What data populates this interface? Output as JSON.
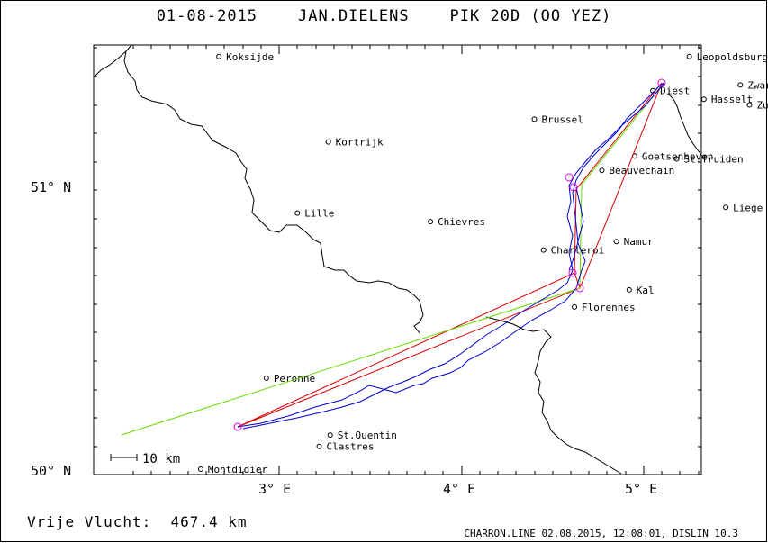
{
  "header": {
    "date": "01-08-2015",
    "pilot": "JAN.DIELENS",
    "glider": "PIK 20D (OO YEZ)"
  },
  "map": {
    "lat_labels": [
      "51° N",
      "50° N"
    ],
    "lon_labels": [
      "3° E",
      "4° E",
      "5° E"
    ],
    "scale_label": "10 km",
    "towns": [
      {
        "name": "Koksijde",
        "lon": 2.67,
        "lat": 51.45
      },
      {
        "name": "Leopoldsburg",
        "lon": 5.25,
        "lat": 51.45
      },
      {
        "name": "Diest",
        "lon": 5.05,
        "lat": 51.33
      },
      {
        "name": "Zwartberg",
        "lon": 5.53,
        "lat": 51.35
      },
      {
        "name": "Hasselt",
        "lon": 5.33,
        "lat": 51.3
      },
      {
        "name": "Zutendaal",
        "lon": 5.58,
        "lat": 51.28
      },
      {
        "name": "Brussel",
        "lon": 4.4,
        "lat": 51.23
      },
      {
        "name": "Kortrijk",
        "lon": 3.27,
        "lat": 51.15
      },
      {
        "name": "Goetsenhoven",
        "lon": 4.95,
        "lat": 51.1
      },
      {
        "name": "St.Truiden",
        "lon": 5.18,
        "lat": 51.09
      },
      {
        "name": "Beauvechain",
        "lon": 4.77,
        "lat": 51.05
      },
      {
        "name": "Liege",
        "lon": 5.45,
        "lat": 50.92
      },
      {
        "name": "Lille",
        "lon": 3.1,
        "lat": 50.9
      },
      {
        "name": "Chievres",
        "lon": 3.83,
        "lat": 50.87
      },
      {
        "name": "Namur",
        "lon": 4.85,
        "lat": 50.8
      },
      {
        "name": "Charleroi",
        "lon": 4.45,
        "lat": 50.77
      },
      {
        "name": "Kal",
        "lon": 4.92,
        "lat": 50.63
      },
      {
        "name": "Florennes",
        "lon": 4.62,
        "lat": 50.57
      },
      {
        "name": "Peronne",
        "lon": 2.93,
        "lat": 50.32
      },
      {
        "name": "St.Quentin",
        "lon": 3.28,
        "lat": 50.12
      },
      {
        "name": "Clastres",
        "lon": 3.22,
        "lat": 50.08
      },
      {
        "name": "Montdidier",
        "lon": 2.57,
        "lat": 50.0
      }
    ]
  },
  "footer": {
    "distance_label": "Vrije Vlucht:",
    "distance_value": "467.4 km",
    "credits": "CHARRON.LINE 02.08.2015, 12:08:01, DISLIN 10.3"
  }
}
